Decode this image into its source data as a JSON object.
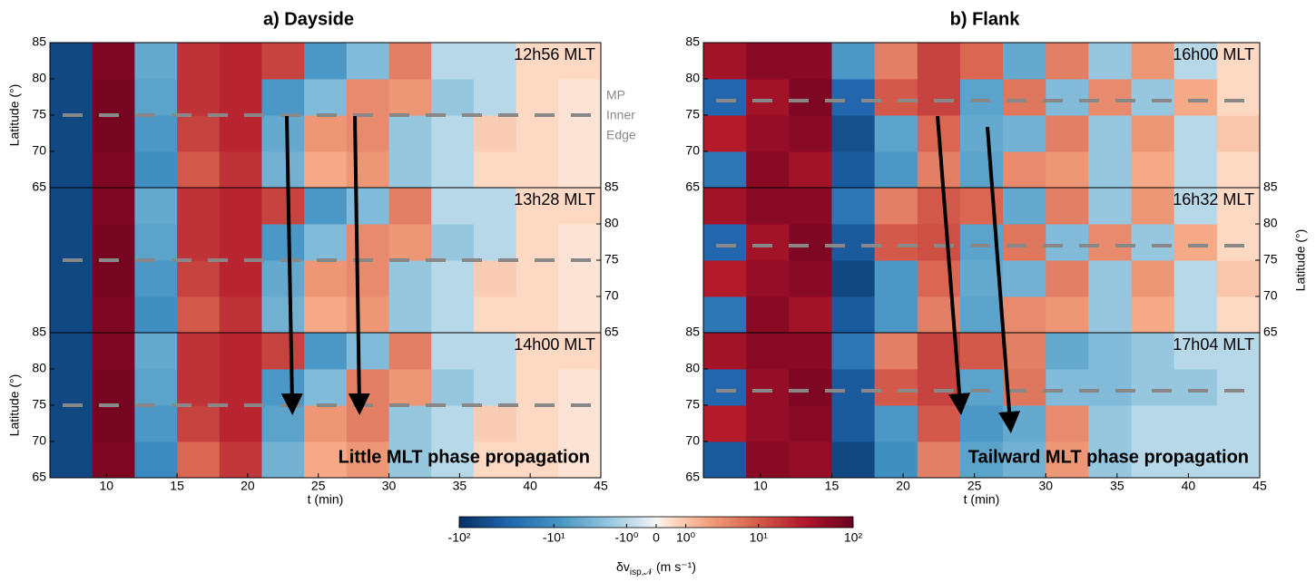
{
  "chart_data": [
    {
      "type": "heatmap",
      "title": "a) Dayside",
      "xlabel": "t (min)",
      "ylabel": "Latitude (°)",
      "x": [
        7.5,
        10.5,
        13.5,
        16.5,
        19.5,
        22.5,
        25.5,
        28.5,
        31.5,
        34.5,
        37.5,
        40.5,
        43.5
      ],
      "y": [
        67.5,
        72.5,
        77.5,
        82.5
      ],
      "xlim": [
        6,
        45
      ],
      "xticks": [
        10,
        15,
        20,
        25,
        30,
        35,
        40,
        45
      ],
      "ylim": [
        65,
        85
      ],
      "yticks": [
        65,
        70,
        75,
        80,
        85
      ],
      "mp_label": [
        "MP",
        "Inner",
        "Edge"
      ],
      "annotation": "Little MLT phase propagation",
      "subplots": [
        {
          "label": "12h56 MLT",
          "ytick_side": "left",
          "ylabel": true,
          "mp_line": 75,
          "values": [
            [
              -60,
              70,
              -10,
              10,
              20,
              -4,
              2,
              3,
              -2,
              -1,
              0.5,
              0.5,
              0.3
            ],
            [
              -60,
              80,
              -8,
              15,
              25,
              -5,
              3,
              4,
              -2,
              -1,
              0.8,
              0.5,
              0.3
            ],
            [
              -60,
              80,
              -6,
              20,
              25,
              -8,
              -3,
              4,
              3,
              -2,
              -1,
              0.5,
              0.3
            ],
            [
              -60,
              70,
              -5,
              20,
              25,
              15,
              -8,
              -3,
              5,
              -1,
              -1,
              0.5,
              0.5
            ]
          ]
        },
        {
          "label": "13h28 MLT",
          "ytick_side": "right",
          "ylabel": false,
          "mp_line": 75,
          "values": [
            [
              -60,
              70,
              -10,
              10,
              20,
              -4,
              2,
              3,
              -2,
              -1,
              0.5,
              0.5,
              0.3
            ],
            [
              -60,
              80,
              -8,
              15,
              25,
              -5,
              3,
              4,
              -2,
              -1,
              0.8,
              0.5,
              0.3
            ],
            [
              -60,
              80,
              -6,
              20,
              25,
              -8,
              -3,
              4,
              3,
              -2,
              -1,
              0.5,
              0.3
            ],
            [
              -60,
              70,
              -5,
              20,
              25,
              15,
              -8,
              -3,
              5,
              -1,
              -1,
              0.5,
              0.5
            ]
          ]
        },
        {
          "label": "14h00 MLT",
          "ytick_side": "left",
          "ylabel": true,
          "mp_line": 75,
          "values": [
            [
              -60,
              70,
              -12,
              8,
              18,
              -4,
              2,
              3,
              -2,
              -1,
              0.5,
              0.5,
              0.3
            ],
            [
              -60,
              80,
              -8,
              15,
              25,
              -6,
              3,
              5,
              -2,
              -1,
              0.8,
              0.5,
              0.3
            ],
            [
              -60,
              80,
              -6,
              20,
              25,
              -8,
              -3,
              5,
              3,
              -2,
              -1,
              0.5,
              0.3
            ],
            [
              -60,
              70,
              -5,
              20,
              25,
              15,
              -8,
              -3,
              5,
              -1,
              -1,
              0.5,
              0.5
            ]
          ]
        }
      ]
    },
    {
      "type": "heatmap",
      "title": "b) Flank",
      "xlabel": "t (min)",
      "ylabel": "Latitude (°)",
      "x": [
        7.5,
        10.5,
        13.5,
        16.5,
        19.5,
        22.5,
        25.5,
        28.5,
        31.5,
        34.5,
        37.5,
        40.5,
        43.5
      ],
      "y": [
        67.5,
        72.5,
        77.5,
        82.5
      ],
      "xlim": [
        6,
        45
      ],
      "xticks": [
        10,
        15,
        20,
        25,
        30,
        35,
        40,
        45
      ],
      "ylim": [
        65,
        85
      ],
      "yticks": [
        65,
        70,
        75,
        80,
        85
      ],
      "annotation": "Tailward MLT phase propagation",
      "subplots": [
        {
          "label": "16h00 MLT",
          "ytick_side": "left",
          "ylabel": false,
          "mp_line": 77,
          "values": [
            [
              -20,
              60,
              40,
              -40,
              -8,
              5,
              -6,
              4,
              3,
              -2,
              2,
              -1,
              0.5
            ],
            [
              30,
              50,
              60,
              -50,
              -6,
              8,
              -5,
              -4,
              5,
              -2,
              3,
              -1,
              1
            ],
            [
              -30,
              40,
              70,
              -30,
              10,
              15,
              -6,
              6,
              -3,
              4,
              -2,
              2,
              0.5
            ],
            [
              40,
              60,
              60,
              -8,
              5,
              15,
              8,
              -5,
              5,
              -2,
              3,
              -1,
              0.5
            ]
          ]
        },
        {
          "label": "16h32 MLT",
          "ytick_side": "right",
          "ylabel": true,
          "mp_line": 77,
          "values": [
            [
              -20,
              60,
              40,
              -40,
              -8,
              5,
              -6,
              4,
              3,
              -2,
              2,
              -1,
              0.5
            ],
            [
              30,
              50,
              60,
              -60,
              -8,
              8,
              -5,
              -4,
              5,
              -2,
              3,
              -1,
              1
            ],
            [
              -30,
              40,
              70,
              -40,
              10,
              12,
              -6,
              6,
              -3,
              4,
              -2,
              2,
              0.5
            ],
            [
              40,
              60,
              60,
              -20,
              5,
              10,
              8,
              -5,
              5,
              -2,
              3,
              -1,
              0.5
            ]
          ]
        },
        {
          "label": "17h04 MLT",
          "ytick_side": "left",
          "ylabel": false,
          "mp_line": 77,
          "values": [
            [
              -40,
              60,
              50,
              -60,
              -10,
              5,
              -6,
              -4,
              3,
              -2,
              -1,
              -1,
              -1
            ],
            [
              30,
              50,
              60,
              -40,
              -8,
              10,
              -8,
              -5,
              4,
              -2,
              -1,
              -1,
              -1
            ],
            [
              -30,
              50,
              70,
              -40,
              10,
              15,
              -6,
              6,
              -3,
              -3,
              -2,
              -2,
              -1
            ],
            [
              40,
              60,
              60,
              -20,
              5,
              15,
              10,
              5,
              -5,
              -3,
              -2,
              -1,
              -1
            ]
          ]
        }
      ]
    }
  ],
  "colorbar": {
    "label": "δv",
    "label_sub": "isp,𝒩",
    "label_unit": "(m s⁻¹)",
    "clim": [
      -100,
      100
    ],
    "ticks": [
      {
        "value": -100,
        "label": "-10²"
      },
      {
        "value": -10,
        "label": "-10¹"
      },
      {
        "value": -1,
        "label": "-10⁰"
      },
      0,
      {
        "value": 1,
        "label": "10⁰"
      },
      {
        "value": 10,
        "label": "10¹"
      },
      {
        "value": 100,
        "label": "10²"
      }
    ]
  }
}
